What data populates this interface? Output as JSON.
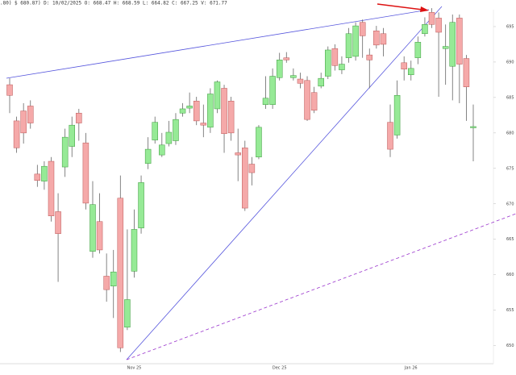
{
  "chart_data": {
    "type": "candlestick",
    "header": ".80) $ 680.87) D: 10/02/2025 O: 668.47 H: 668.59 L: 664.82 C: 667.25 V: 671.77",
    "categories": [
      null,
      null,
      null,
      null,
      null,
      null,
      null,
      null,
      null,
      null,
      null,
      null,
      null,
      null,
      null,
      null,
      null,
      null,
      "Nov 25",
      null,
      null,
      null,
      null,
      null,
      null,
      null,
      null,
      null,
      null,
      null,
      null,
      null,
      null,
      null,
      null,
      null,
      null,
      null,
      null,
      "Dec 25",
      null,
      null,
      null,
      null,
      null,
      null,
      null,
      null,
      null,
      null,
      null,
      null,
      null,
      null,
      null,
      null,
      null,
      null,
      "Jan 26",
      null,
      null,
      null,
      null,
      null,
      null,
      null,
      null,
      null
    ],
    "open": [
      686.8,
      681.7,
      683.1,
      683.8,
      674.2,
      673.2,
      676.0,
      668.9,
      675.2,
      678.1,
      682.8,
      678.6,
      663.3,
      667.5,
      659.8,
      658.4,
      670.8,
      652.6,
      660.5,
      666.6,
      675.7,
      679.0,
      676.9,
      678.5,
      678.9,
      682.8,
      683.5,
      684.5,
      681.4,
      680.8,
      683.4,
      686.3,
      684.5,
      677.2,
      677.9,
      675.6,
      676.6,
      684.0,
      684.0,
      687.8,
      690.6,
      687.8,
      687.6,
      687.4,
      685.7,
      686.6,
      688.0,
      691.9,
      688.9,
      690.6,
      690.8,
      695.6,
      691.0,
      694.4,
      694.0,
      681.5,
      679.7,
      689.9,
      688.2,
      690.6,
      694.0,
      697.0,
      696.2,
      691.9,
      689.4,
      696.2,
      690.5,
      680.8
    ],
    "high": [
      687.7,
      682.3,
      684.2,
      684.6,
      675.5,
      676.0,
      676.6,
      671.5,
      680.6,
      682.3,
      683.4,
      680.0,
      673.2,
      671.5,
      663.0,
      663.5,
      674.0,
      666.4,
      669.2,
      674.0,
      679.4,
      682.3,
      680.0,
      681.7,
      682.8,
      684.2,
      685.7,
      685.1,
      684.0,
      686.3,
      687.4,
      686.8,
      685.1,
      680.6,
      678.9,
      676.6,
      681.1,
      688.0,
      689.1,
      691.3,
      691.4,
      689.1,
      688.5,
      688.0,
      686.5,
      688.5,
      692.2,
      692.5,
      690.8,
      694.8,
      695.6,
      696.0,
      691.9,
      695.1,
      694.8,
      684.0,
      687.4,
      690.8,
      690.2,
      693.6,
      696.3,
      697.6,
      697.0,
      695.3,
      696.7,
      696.7,
      691.0,
      684.0
    ],
    "low": [
      682.8,
      677.2,
      678.5,
      680.6,
      672.4,
      672.0,
      667.5,
      659.0,
      673.8,
      676.6,
      678.9,
      669.2,
      662.4,
      663.0,
      656.2,
      653.9,
      649.1,
      652.2,
      659.6,
      665.8,
      674.9,
      678.5,
      676.6,
      678.1,
      678.3,
      682.3,
      682.8,
      681.1,
      679.4,
      680.0,
      682.8,
      677.2,
      678.9,
      673.2,
      669.0,
      672.6,
      676.3,
      683.4,
      683.4,
      687.4,
      689.9,
      687.4,
      686.3,
      681.7,
      682.8,
      686.3,
      687.6,
      688.8,
      688.3,
      689.9,
      690.2,
      690.6,
      686.3,
      691.9,
      690.8,
      676.6,
      679.2,
      687.4,
      687.4,
      689.7,
      693.6,
      694.8,
      685.1,
      686.8,
      684.6,
      684.2,
      681.7,
      676.0
    ],
    "close": [
      685.3,
      677.9,
      680.0,
      681.4,
      673.3,
      675.3,
      668.3,
      665.8,
      679.4,
      681.1,
      681.4,
      670.1,
      669.9,
      663.5,
      657.9,
      660.4,
      649.7,
      656.5,
      666.4,
      673.0,
      677.7,
      681.5,
      678.3,
      680.1,
      681.9,
      683.4,
      683.8,
      681.7,
      681.1,
      685.5,
      687.2,
      679.9,
      680.0,
      676.9,
      669.4,
      674.4,
      680.8,
      684.9,
      688.0,
      690.3,
      690.3,
      688.1,
      687.0,
      681.9,
      683.2,
      687.7,
      691.7,
      689.5,
      689.7,
      694.0,
      695.1,
      693.7,
      690.3,
      692.4,
      692.5,
      677.7,
      685.3,
      689.0,
      689.1,
      692.8,
      695.3,
      695.3,
      694.2,
      692.2,
      695.6,
      689.7,
      686.5,
      680.9
    ],
    "up_color": "#96ea96",
    "down_color": "#f5a9a9",
    "ylim": [
      647,
      698.75
    ],
    "yticks": [
      650,
      655,
      660,
      665,
      670,
      675,
      680,
      685,
      690,
      695
    ]
  }
}
